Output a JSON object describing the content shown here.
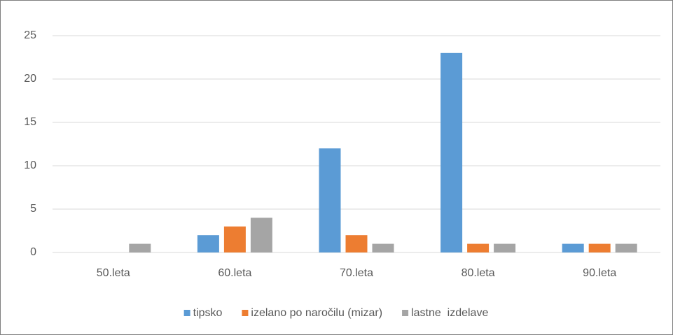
{
  "chart_data": {
    "type": "bar",
    "categories": [
      "50.leta",
      "60.leta",
      "70.leta",
      "80.leta",
      "90.leta"
    ],
    "series": [
      {
        "name": "tipsko",
        "color": "#5b9bd5",
        "values": [
          0,
          2,
          12,
          23,
          1
        ]
      },
      {
        "name": "izelano po naročilu (mizar)",
        "color": "#ed7d31",
        "values": [
          0,
          3,
          2,
          1,
          1
        ]
      },
      {
        "name": "lastne  izdelave",
        "color": "#a5a5a5",
        "values": [
          1,
          4,
          1,
          1,
          1
        ]
      }
    ],
    "ylim": [
      0,
      25
    ],
    "yticks": [
      0,
      5,
      10,
      15,
      20,
      25
    ],
    "grid": true,
    "legend": "bottom"
  }
}
